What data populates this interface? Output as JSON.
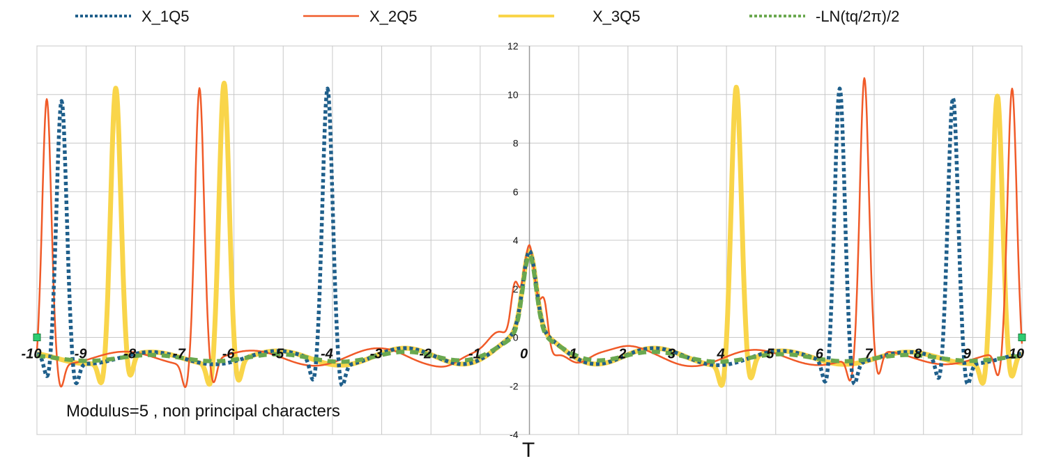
{
  "chart_data": {
    "type": "line",
    "xlabel": "T",
    "ylabel": "",
    "xlim": [
      -10,
      10
    ],
    "ylim": [
      -4,
      12
    ],
    "x_ticks": [
      -10,
      -9,
      -8,
      -7,
      -6,
      -5,
      -4,
      -3,
      -2,
      -1,
      0,
      1,
      2,
      3,
      4,
      5,
      6,
      7,
      8,
      9,
      10
    ],
    "x_tick_labels": [
      "-10",
      "-9",
      "-8",
      "-7",
      "-6",
      "-5",
      "-4",
      "-3",
      "-2",
      "-1",
      "0",
      "1",
      "2",
      "3",
      "4",
      "5",
      "6",
      "7",
      "8",
      "9",
      "10"
    ],
    "y_ticks": [
      -4,
      -2,
      0,
      2,
      4,
      6,
      8,
      10,
      12
    ],
    "y_tick_labels": [
      "-4",
      "-2",
      "0",
      "2",
      "4",
      "6",
      "8",
      "10",
      "12"
    ],
    "grid": true,
    "legend_position": "top",
    "annotation": "Modulus=5 , non principal characters",
    "series": [
      {
        "name": "X_1Q5",
        "color": "#1f5f8b",
        "style": "dotted",
        "peaks": [
          -9.5,
          -4.1,
          6.3,
          8.6
        ],
        "peak_heights": [
          9.8,
          10.5,
          10.5,
          10.0
        ],
        "phase": 0.0
      },
      {
        "name": "X_2Q5",
        "color": "#f05a28",
        "style": "solid",
        "peaks": [
          -9.8,
          -6.7,
          6.8,
          9.8
        ],
        "peak_heights": [
          10.0,
          10.5,
          10.5,
          10.0
        ],
        "phase": 1.3
      },
      {
        "name": "X_3Q5",
        "color": "#f9d54a",
        "style": "thick",
        "peaks": [
          -8.4,
          -6.2,
          4.2,
          9.5
        ],
        "peak_heights": [
          10.3,
          10.7,
          10.5,
          10.0
        ],
        "phase": 0.0
      },
      {
        "name": "-LN(tq/2π)/2",
        "color": "#6aa84f",
        "style": "dashed",
        "peaks": [],
        "peak_heights": [],
        "phase": 0.0
      }
    ],
    "markers": [
      {
        "x": -10,
        "y": 0,
        "color": "#2ecc71"
      },
      {
        "x": 10,
        "y": 0,
        "color": "#2ecc71"
      }
    ]
  }
}
